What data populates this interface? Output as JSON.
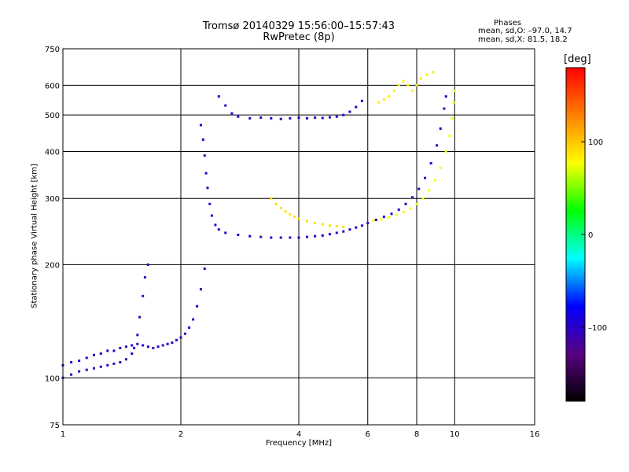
{
  "header": {
    "title_line1": "Tromsø 20140329 15:56:00–15:57:43",
    "title_line2": "RwPretec (8p)",
    "phases_title": "Phases",
    "phases_o": "mean, sd,O: –97.0, 14.7",
    "phases_x": "mean, sd,X:  81.5, 18.2"
  },
  "colorbar": {
    "title": "[deg]",
    "ticks": [
      {
        "value": 100,
        "label": "100"
      },
      {
        "value": 0,
        "label": "0"
      },
      {
        "value": -100,
        "label": "–100"
      }
    ],
    "range": [
      -180,
      180
    ],
    "gradient": [
      "#000000",
      "#5a0082",
      "#0000ff",
      "#00ffff",
      "#00ff00",
      "#ffff00",
      "#ff8000",
      "#ff0000"
    ]
  },
  "chart_data": {
    "type": "scatter",
    "title": "Tromsø 20140329 15:56:00–15:57:43",
    "subtitle": "RwPretec (8p)",
    "xlabel": "Frequency [MHz]",
    "ylabel": "Stationary phase Virtual Height [km]",
    "x_scale": "log",
    "y_scale": "log",
    "xlim": [
      1,
      16
    ],
    "ylim": [
      75,
      750
    ],
    "x_ticks": [
      1,
      2,
      4,
      6,
      8,
      10,
      16
    ],
    "x_tick_labels": [
      "1",
      "2",
      "4",
      "6",
      "8",
      "10",
      "16"
    ],
    "y_ticks": [
      75,
      100,
      200,
      300,
      400,
      500,
      600,
      750
    ],
    "y_tick_labels": [
      "75",
      "100",
      "200",
      "300",
      "400",
      "500",
      "600",
      "750"
    ],
    "grid": true,
    "color_by": "phase [deg]",
    "traces": [
      {
        "points": [
          [
            1.0,
            108
          ],
          [
            1.05,
            110
          ],
          [
            1.1,
            111
          ],
          [
            1.15,
            113
          ],
          [
            1.2,
            115
          ],
          [
            1.25,
            116
          ],
          [
            1.3,
            118
          ],
          [
            1.35,
            118
          ],
          [
            1.4,
            120
          ],
          [
            1.45,
            121
          ],
          [
            1.5,
            122
          ],
          [
            1.55,
            123
          ],
          [
            1.6,
            122
          ],
          [
            1.65,
            121
          ],
          [
            1.7,
            120
          ],
          [
            1.75,
            121
          ],
          [
            1.8,
            122
          ],
          [
            1.85,
            123
          ],
          [
            1.9,
            124
          ],
          [
            1.95,
            126
          ],
          [
            2.0,
            128
          ],
          [
            2.05,
            131
          ],
          [
            2.1,
            136
          ],
          [
            2.15,
            143
          ],
          [
            2.2,
            155
          ],
          [
            2.25,
            172
          ],
          [
            2.3,
            195
          ]
        ],
        "phase": -100
      },
      {
        "points": [
          [
            1.0,
            100
          ],
          [
            1.05,
            102
          ],
          [
            1.1,
            104
          ],
          [
            1.15,
            105
          ],
          [
            1.2,
            106
          ],
          [
            1.25,
            107
          ],
          [
            1.3,
            108
          ],
          [
            1.35,
            109
          ],
          [
            1.4,
            110
          ],
          [
            1.45,
            112
          ],
          [
            1.5,
            116
          ],
          [
            1.52,
            120
          ],
          [
            1.55,
            130
          ],
          [
            1.57,
            145
          ],
          [
            1.6,
            165
          ],
          [
            1.62,
            185
          ],
          [
            1.65,
            200
          ]
        ],
        "phase": -105
      },
      {
        "points": [
          [
            2.25,
            470
          ],
          [
            2.28,
            430
          ],
          [
            2.3,
            390
          ],
          [
            2.32,
            350
          ],
          [
            2.34,
            320
          ],
          [
            2.37,
            290
          ],
          [
            2.4,
            270
          ],
          [
            2.45,
            255
          ],
          [
            2.5,
            248
          ],
          [
            2.6,
            243
          ],
          [
            2.8,
            240
          ],
          [
            3.0,
            238
          ],
          [
            3.2,
            237
          ],
          [
            3.4,
            236
          ],
          [
            3.6,
            236
          ],
          [
            3.8,
            236
          ],
          [
            4.0,
            236
          ],
          [
            4.2,
            237
          ],
          [
            4.4,
            238
          ],
          [
            4.6,
            239
          ],
          [
            4.8,
            241
          ],
          [
            5.0,
            243
          ],
          [
            5.2,
            245
          ],
          [
            5.4,
            248
          ],
          [
            5.6,
            251
          ],
          [
            5.8,
            254
          ],
          [
            6.0,
            258
          ],
          [
            6.3,
            263
          ],
          [
            6.6,
            268
          ],
          [
            6.9,
            273
          ],
          [
            7.2,
            280
          ],
          [
            7.5,
            290
          ],
          [
            7.8,
            302
          ],
          [
            8.1,
            318
          ],
          [
            8.4,
            340
          ],
          [
            8.7,
            372
          ],
          [
            9.0,
            415
          ],
          [
            9.2,
            460
          ],
          [
            9.4,
            520
          ],
          [
            9.5,
            560
          ]
        ],
        "phase": -100
      },
      {
        "points": [
          [
            3.4,
            300
          ],
          [
            3.5,
            290
          ],
          [
            3.6,
            283
          ],
          [
            3.7,
            277
          ],
          [
            3.8,
            272
          ],
          [
            3.9,
            268
          ],
          [
            4.0,
            265
          ],
          [
            4.2,
            261
          ],
          [
            4.4,
            258
          ],
          [
            4.6,
            256
          ],
          [
            4.8,
            254
          ],
          [
            5.0,
            253
          ],
          [
            5.2,
            252
          ]
        ],
        "phase": 90
      },
      {
        "points": [
          [
            6.2,
            262
          ],
          [
            6.5,
            264
          ],
          [
            6.8,
            267
          ],
          [
            7.1,
            271
          ],
          [
            7.4,
            276
          ],
          [
            7.7,
            282
          ],
          [
            8.0,
            290
          ],
          [
            8.3,
            300
          ],
          [
            8.6,
            315
          ],
          [
            8.9,
            335
          ],
          [
            9.2,
            362
          ],
          [
            9.5,
            400
          ],
          [
            9.7,
            440
          ],
          [
            9.85,
            490
          ],
          [
            9.95,
            540
          ],
          [
            10.0,
            580
          ]
        ],
        "phase": 75
      },
      {
        "points": [
          [
            2.5,
            560
          ],
          [
            2.6,
            530
          ],
          [
            2.7,
            505
          ],
          [
            2.8,
            495
          ],
          [
            3.0,
            490
          ],
          [
            3.2,
            492
          ],
          [
            3.4,
            490
          ],
          [
            3.6,
            488
          ],
          [
            3.8,
            490
          ],
          [
            4.0,
            492
          ],
          [
            4.2,
            490
          ],
          [
            4.4,
            492
          ],
          [
            4.6,
            491
          ],
          [
            4.8,
            493
          ],
          [
            5.0,
            495
          ],
          [
            5.2,
            500
          ],
          [
            5.4,
            510
          ],
          [
            5.6,
            525
          ],
          [
            5.8,
            545
          ]
        ],
        "phase": -100
      },
      {
        "points": [
          [
            6.4,
            540
          ],
          [
            6.6,
            550
          ],
          [
            6.8,
            560
          ],
          [
            7.0,
            580
          ],
          [
            7.2,
            600
          ],
          [
            7.4,
            615
          ],
          [
            7.6,
            600
          ],
          [
            7.8,
            580
          ],
          [
            8.0,
            600
          ],
          [
            8.2,
            625
          ],
          [
            8.5,
            640
          ],
          [
            8.8,
            650
          ]
        ],
        "phase": 85
      }
    ]
  }
}
